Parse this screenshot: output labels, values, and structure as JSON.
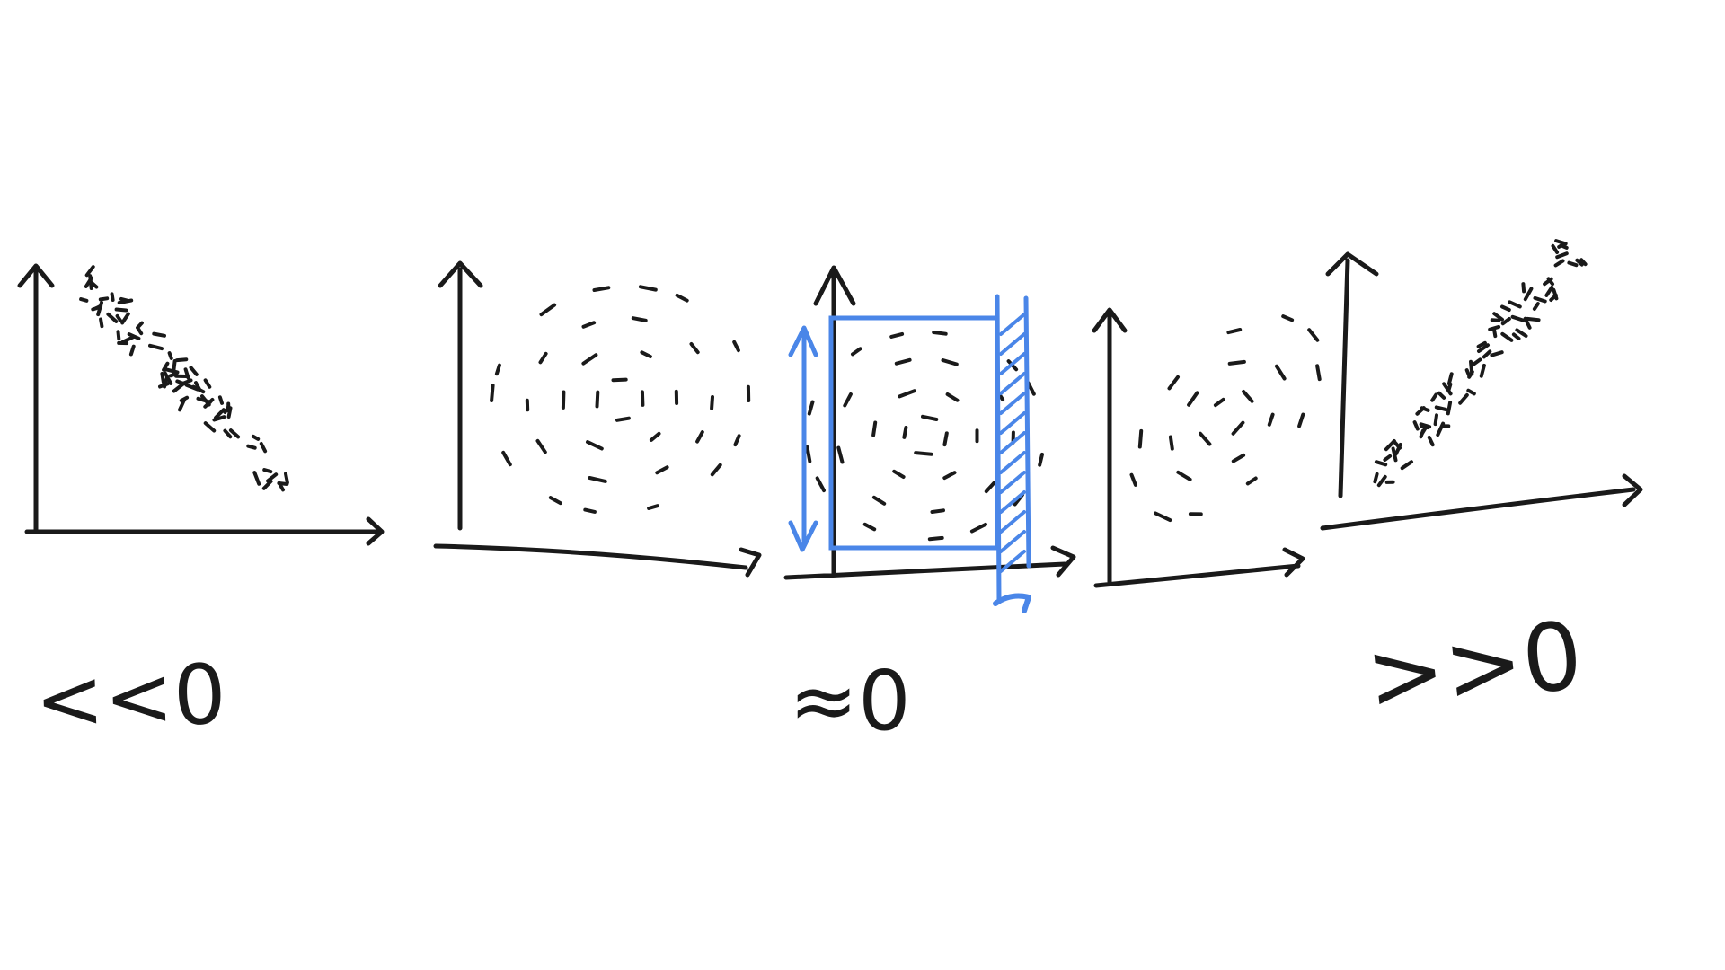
{
  "canvas": {
    "background": "#ffffff"
  },
  "colors": {
    "ink": "#1a1a1a",
    "highlight": "#4a86e8"
  },
  "labels": {
    "strongly_negative": "<<0",
    "approximately_zero": "≈0",
    "strongly_positive": ">>0"
  },
  "panels": [
    {
      "id": "panel-1",
      "pattern": "negative-line"
    },
    {
      "id": "panel-2",
      "pattern": "rings"
    },
    {
      "id": "panel-3",
      "pattern": "rings-with-highlight"
    },
    {
      "id": "panel-4",
      "pattern": "tilted-rings"
    },
    {
      "id": "panel-5",
      "pattern": "positive-line"
    }
  ]
}
